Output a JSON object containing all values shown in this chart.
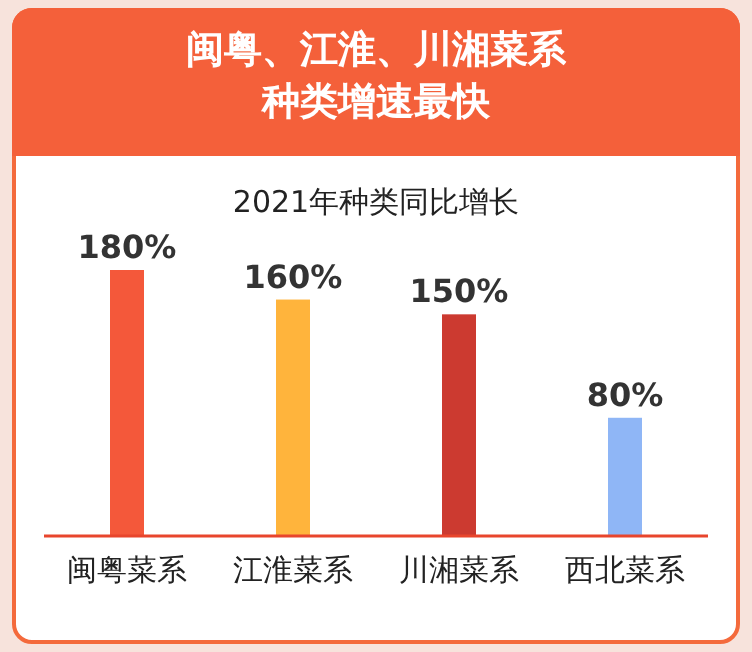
{
  "chart_data": {
    "type": "bar",
    "title": "闽粤、江淮、川湘菜系种类增速最快",
    "subtitle": "2021年种类同比增长",
    "categories": [
      "闽粤菜系",
      "江淮菜系",
      "川湘菜系",
      "西北菜系"
    ],
    "values": [
      180,
      160,
      150,
      80
    ],
    "colors": [
      "#f4583a",
      "#ffb43c",
      "#cc3a30",
      "#8fb6f6"
    ],
    "value_labels": [
      "180%",
      "160%",
      "150%",
      "80%"
    ]
  }
}
